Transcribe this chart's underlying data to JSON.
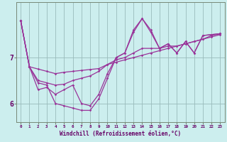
{
  "xlabel": "Windchill (Refroidissement éolien,°C)",
  "background_color": "#cceeee",
  "line_color": "#993399",
  "grid_color": "#99bbbb",
  "x": [
    0,
    1,
    2,
    3,
    4,
    5,
    6,
    7,
    8,
    9,
    10,
    11,
    12,
    13,
    14,
    15,
    16,
    17,
    18,
    19,
    20,
    21,
    22,
    23
  ],
  "line1": [
    7.8,
    6.8,
    6.75,
    6.7,
    6.65,
    6.68,
    6.7,
    6.72,
    6.74,
    6.76,
    6.85,
    6.9,
    6.95,
    7.0,
    7.05,
    7.1,
    7.15,
    7.2,
    7.25,
    7.3,
    7.35,
    7.4,
    7.45,
    7.5
  ],
  "line2": [
    7.8,
    6.8,
    6.5,
    6.45,
    6.4,
    6.42,
    6.5,
    6.55,
    6.6,
    6.7,
    6.85,
    6.95,
    7.0,
    7.1,
    7.2,
    7.2,
    7.2,
    7.25,
    7.25,
    7.3,
    7.35,
    7.4,
    7.48,
    7.52
  ],
  "line3": [
    7.8,
    6.8,
    6.3,
    6.35,
    6.2,
    6.3,
    6.4,
    6.0,
    5.95,
    6.2,
    6.65,
    7.0,
    7.1,
    7.55,
    7.85,
    7.55,
    7.2,
    7.3,
    7.1,
    7.35,
    7.1,
    7.48,
    7.5,
    7.52
  ],
  "line4": [
    7.8,
    6.8,
    6.45,
    6.4,
    6.0,
    5.95,
    5.9,
    5.85,
    5.85,
    6.1,
    6.55,
    7.0,
    7.1,
    7.6,
    7.85,
    7.6,
    7.2,
    7.3,
    7.1,
    7.35,
    7.1,
    7.48,
    7.5,
    7.52
  ],
  "ylim": [
    5.6,
    8.2
  ],
  "xlim": [
    -0.5,
    23.5
  ],
  "yticks": [
    6,
    7
  ],
  "ytick_labels": [
    "6",
    "7"
  ],
  "xticks": [
    0,
    1,
    2,
    3,
    4,
    5,
    6,
    7,
    8,
    9,
    10,
    11,
    12,
    13,
    14,
    15,
    16,
    17,
    18,
    19,
    20,
    21,
    22,
    23
  ]
}
